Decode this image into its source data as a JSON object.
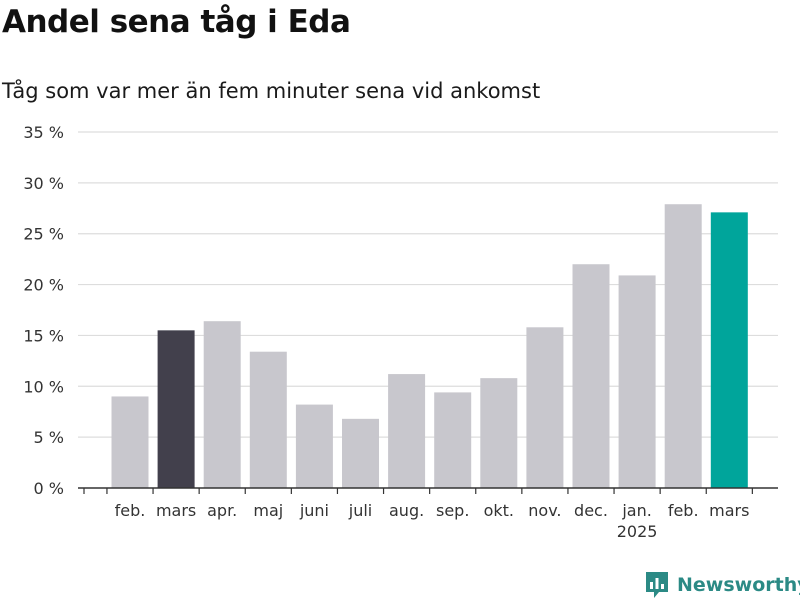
{
  "title": "Andel sena tåg i Eda",
  "subtitle": "Tåg som var mer än fem minuter sena vid ankomst",
  "brand": "Newsworthy",
  "colors": {
    "default_bar": "#c8c7cd",
    "highlight_prev_year": "#42404c",
    "highlight_current": "#00a59b",
    "gridline": "#dddddd",
    "axis": "#333333",
    "brand": "#2b8a85"
  },
  "chart_data": {
    "type": "bar",
    "categories": [
      "feb.",
      "mars",
      "apr.",
      "maj",
      "juni",
      "juli",
      "aug.",
      "sep.",
      "okt.",
      "nov.",
      "dec.",
      "jan.",
      "feb.",
      "mars"
    ],
    "year_labels": [
      {
        "index": 11,
        "label": "2025"
      }
    ],
    "values": [
      9.0,
      15.5,
      16.4,
      13.4,
      8.2,
      6.8,
      11.2,
      9.4,
      10.8,
      15.8,
      22.0,
      20.9,
      27.9,
      27.1
    ],
    "bar_colors": [
      "default_bar",
      "highlight_prev_year",
      "default_bar",
      "default_bar",
      "default_bar",
      "default_bar",
      "default_bar",
      "default_bar",
      "default_bar",
      "default_bar",
      "default_bar",
      "default_bar",
      "default_bar",
      "highlight_current"
    ],
    "y_ticks": [
      "0 %",
      "5 %",
      "10 %",
      "15 %",
      "20 %",
      "25 %",
      "30 %",
      "35 %"
    ],
    "ylim": [
      0,
      35
    ],
    "xlabel": "",
    "ylabel": "",
    "grid": true
  }
}
